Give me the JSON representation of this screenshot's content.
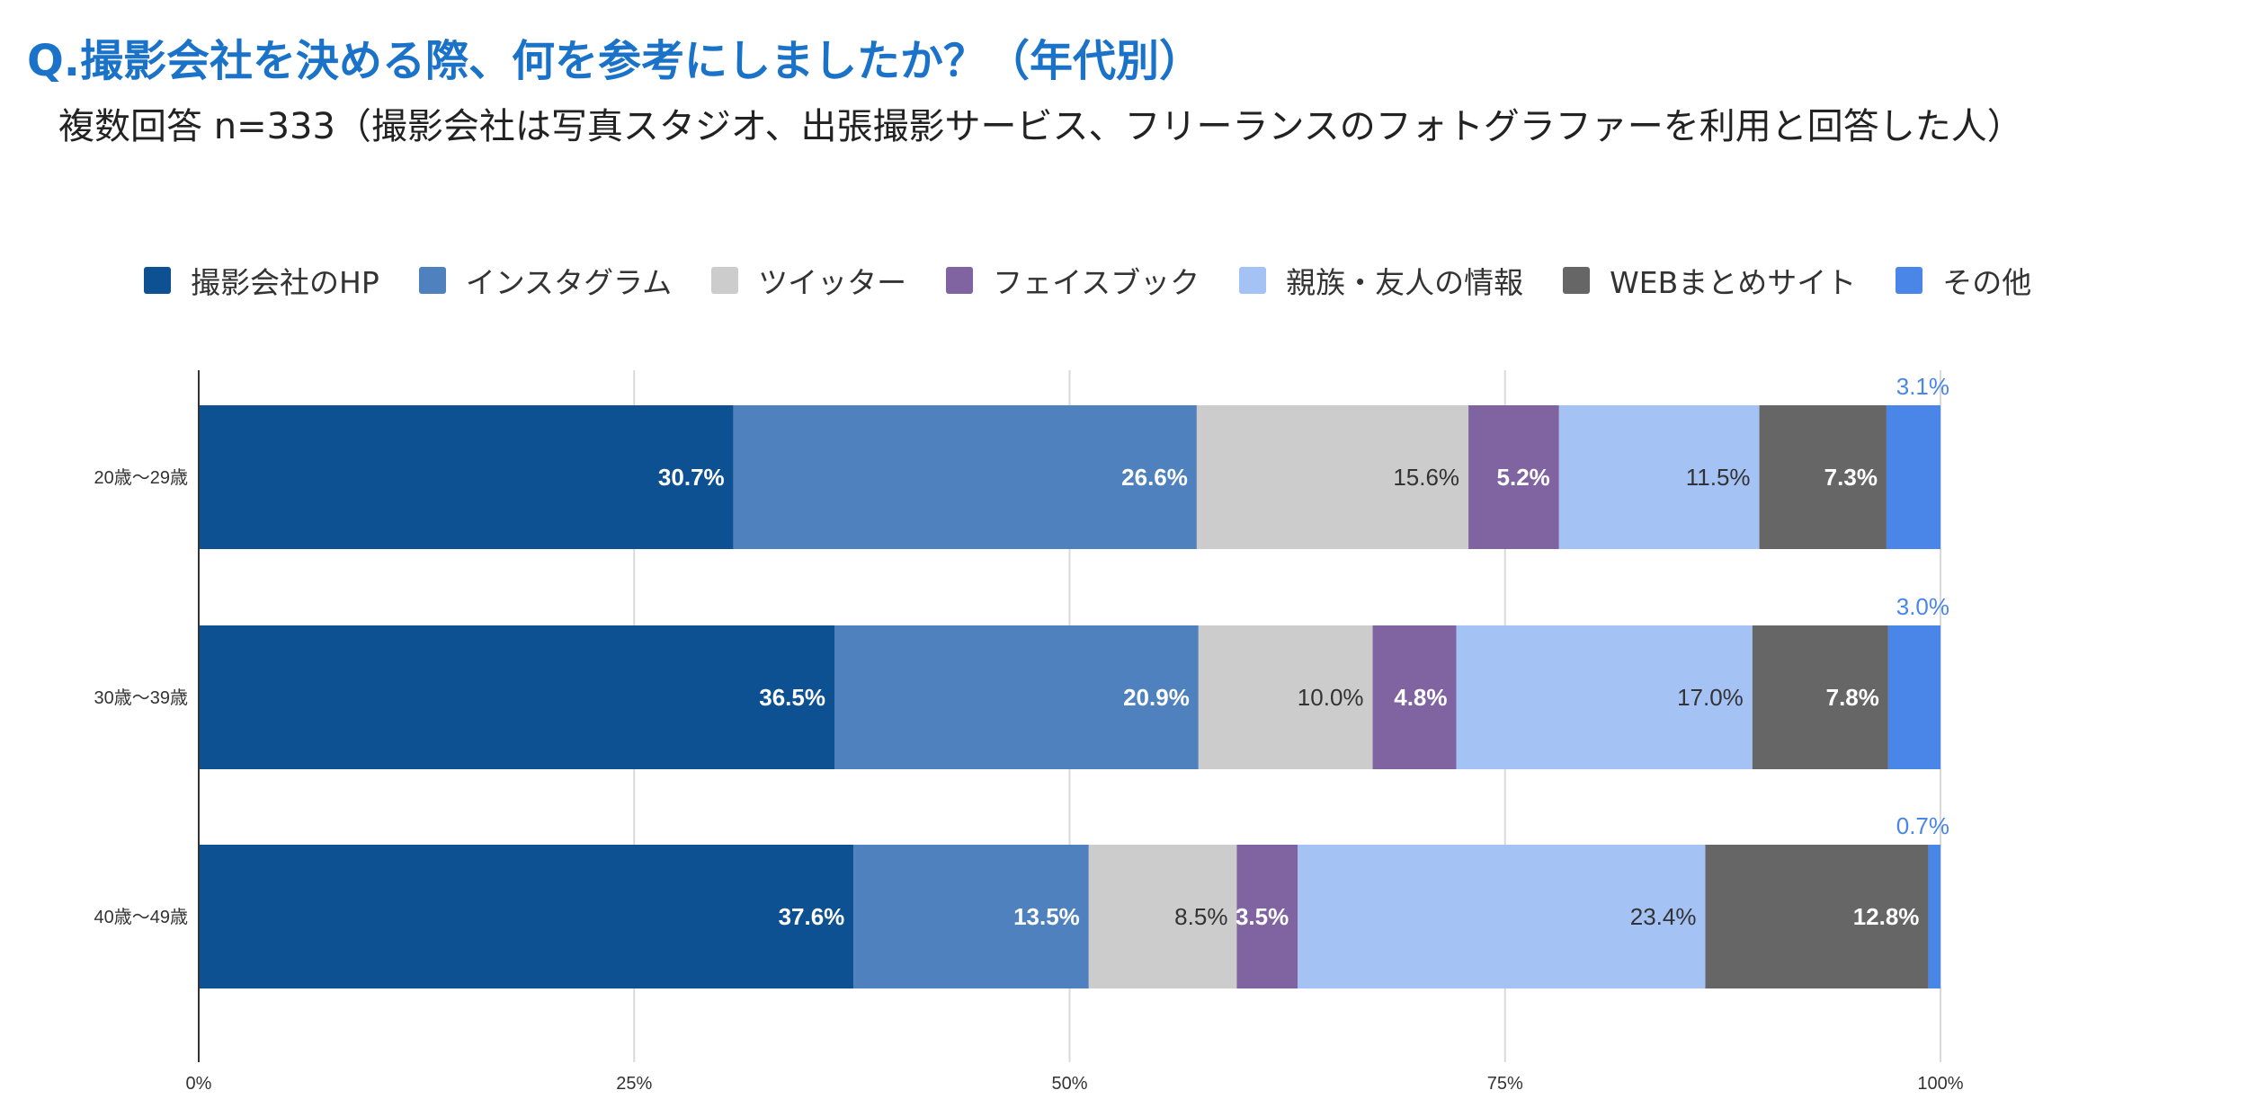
{
  "title": "Q.撮影会社を決める際、何を参考にしましたか？（年代別）",
  "subtitle": "複数回答 n=333（撮影会社は写真スタジオ、出張撮影サービス、フリーランスのフォトグラファーを利用と回答した人）",
  "legend": [
    {
      "label": "撮影会社のHP",
      "color": "#0d5192"
    },
    {
      "label": "インスタグラム",
      "color": "#4e81be"
    },
    {
      "label": "ツイッター",
      "color": "#cccccc"
    },
    {
      "label": "フェイスブック",
      "color": "#8064a2"
    },
    {
      "label": "親族・友人の情報",
      "color": "#a4c2f4"
    },
    {
      "label": "WEBまとめサイト",
      "color": "#666666"
    },
    {
      "label": "その他",
      "color": "#4a86e8"
    }
  ],
  "chart_data": {
    "type": "bar",
    "orientation": "horizontal",
    "stacked": true,
    "categories": [
      "20歳〜29歳",
      "30歳〜39歳",
      "40歳〜49歳"
    ],
    "series": [
      {
        "name": "撮影会社のHP",
        "values": [
          30.7,
          36.5,
          37.6
        ],
        "labels": [
          "30.7%",
          "36.5%",
          "37.6%"
        ],
        "color": "#0d5192",
        "label_color": "#ffffff"
      },
      {
        "name": "インスタグラム",
        "values": [
          26.6,
          20.9,
          13.5
        ],
        "labels": [
          "26.6%",
          "20.9%",
          "13.5%"
        ],
        "color": "#4e81be",
        "label_color": "#ffffff"
      },
      {
        "name": "ツイッター",
        "values": [
          15.6,
          10.0,
          8.5
        ],
        "labels": [
          "15.6%",
          "10.0%",
          "8.5%"
        ],
        "color": "#cccccc",
        "label_color": "#333333"
      },
      {
        "name": "フェイスブック",
        "values": [
          5.2,
          4.8,
          3.5
        ],
        "labels": [
          "5.2%",
          "4.8%",
          "3.5%"
        ],
        "color": "#8064a2",
        "label_color": "#ffffff"
      },
      {
        "name": "親族・友人の情報",
        "values": [
          11.5,
          17.0,
          23.4
        ],
        "labels": [
          "11.5%",
          "17.0%",
          "23.4%"
        ],
        "color": "#a4c2f4",
        "label_color": "#333333"
      },
      {
        "name": "WEBまとめサイト",
        "values": [
          7.3,
          7.8,
          12.8
        ],
        "labels": [
          "7.3%",
          "7.8%",
          "12.8%"
        ],
        "color": "#666666",
        "label_color": "#ffffff"
      },
      {
        "name": "その他",
        "values": [
          3.1,
          3.0,
          0.7
        ],
        "labels": [
          "3.1%",
          "3.0%",
          "0.7%"
        ],
        "color": "#4a86e8",
        "label_color": "#4a86e8"
      }
    ],
    "xticks": [
      "0%",
      "25%",
      "50%",
      "75%",
      "100%"
    ],
    "xlim": [
      0,
      100
    ],
    "grid": true,
    "legend_position": "top"
  }
}
